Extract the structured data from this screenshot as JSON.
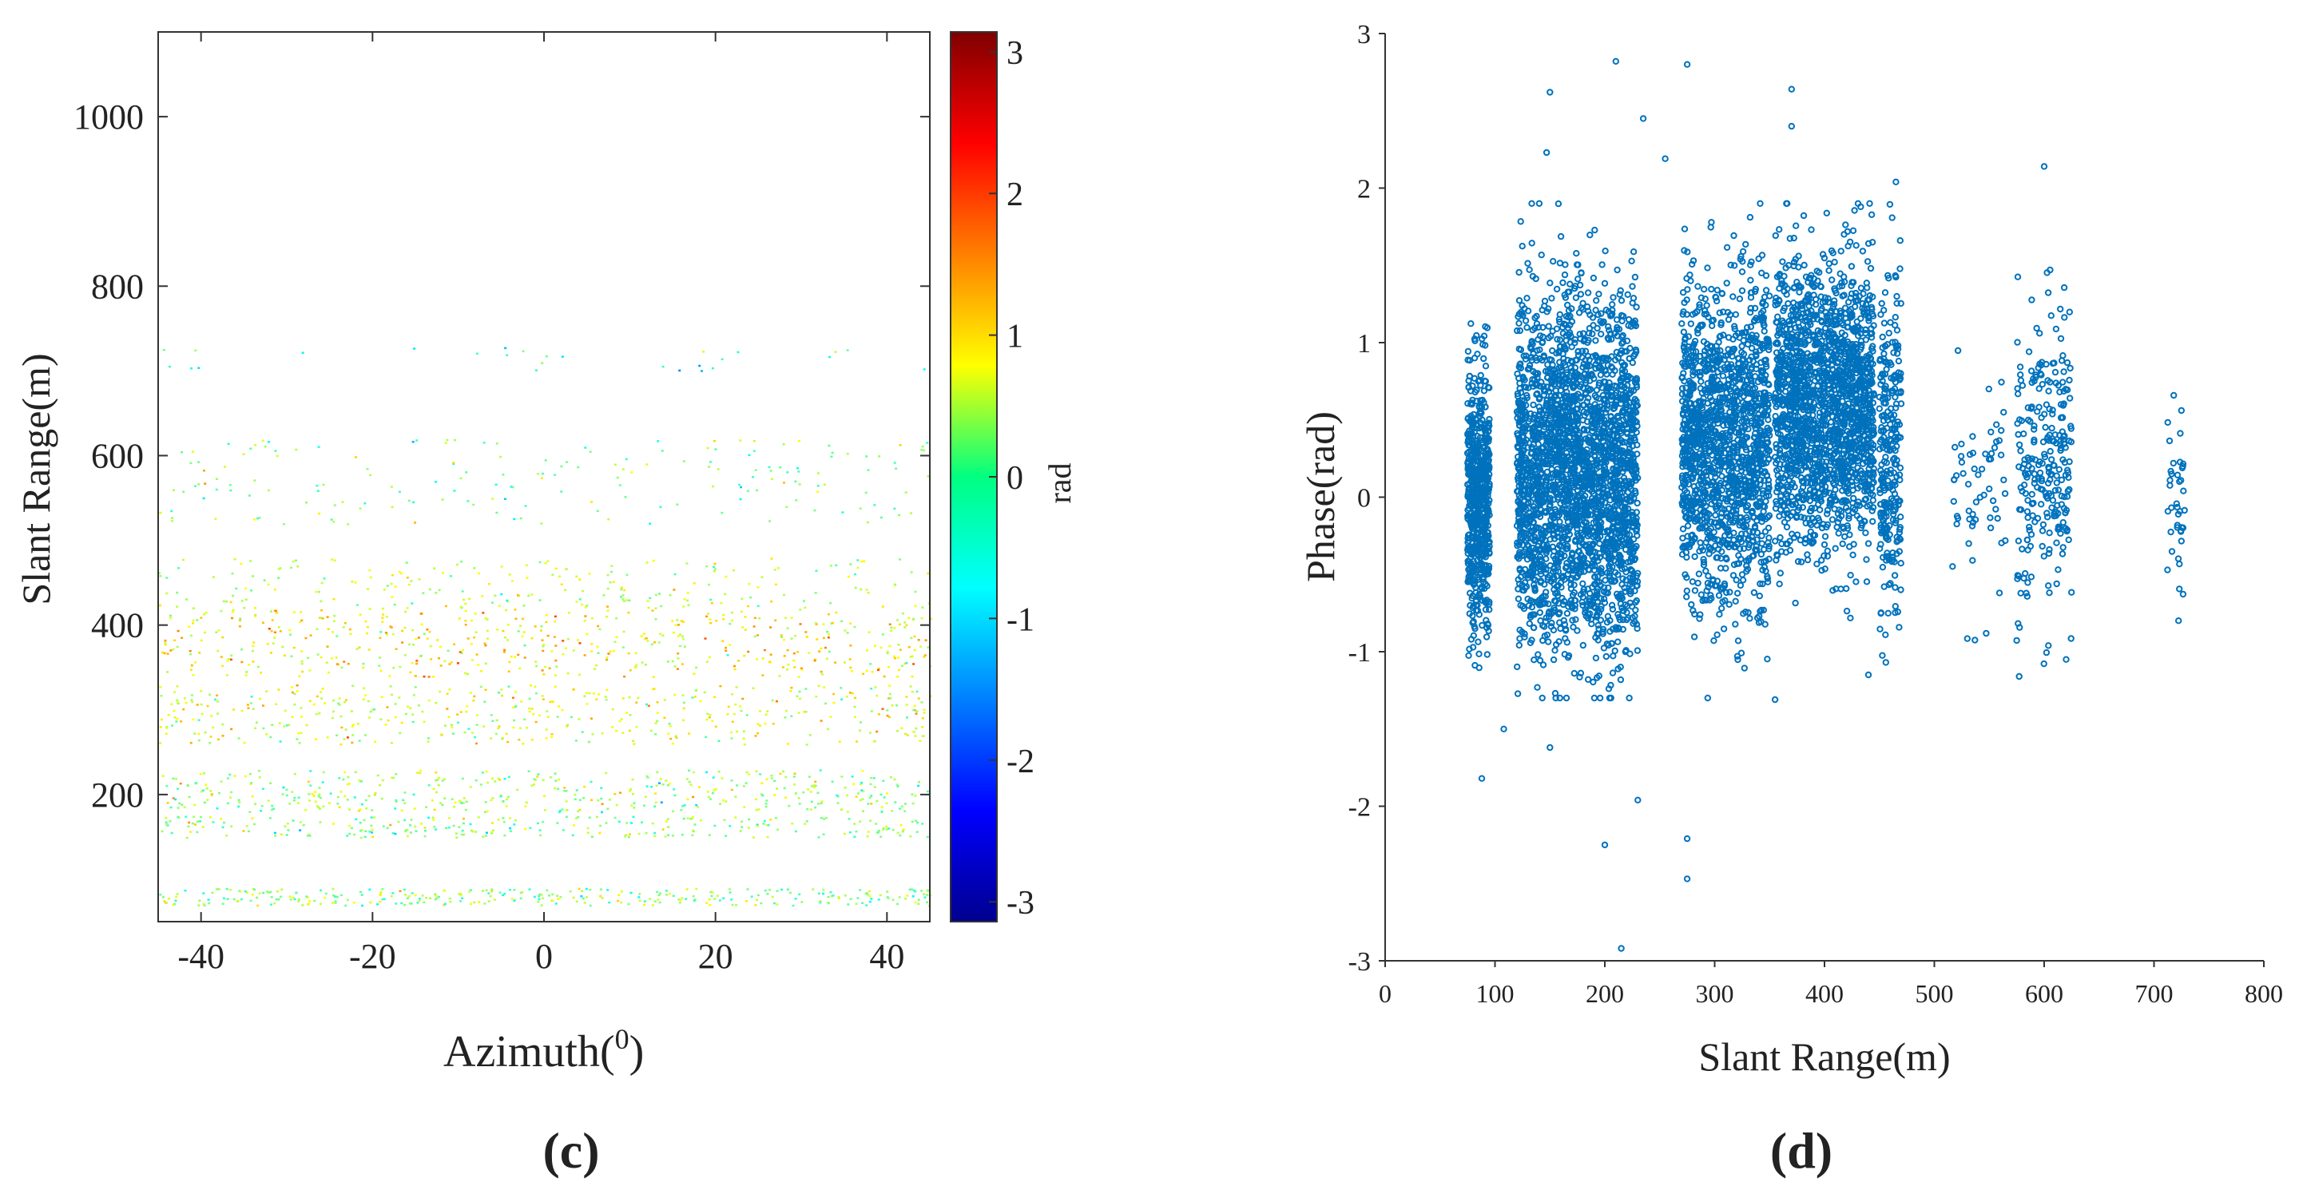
{
  "chart_data": [
    {
      "panel_label": "(c)",
      "type": "heatmap",
      "xlabel": "Azimuth(",
      "xlabel_sup": "0",
      "xlabel_close": ")",
      "ylabel": "Slant Range(m)",
      "xlim": [
        -45,
        45
      ],
      "ylim": [
        50,
        1100
      ],
      "xticks": [
        -40,
        -20,
        0,
        20,
        40
      ],
      "yticks": [
        200,
        400,
        600,
        800,
        1000
      ],
      "colorbar": {
        "label": "rad",
        "range": [
          -3.14,
          3.14
        ],
        "ticks": [
          -3,
          -2,
          -1,
          0,
          1,
          2,
          3
        ],
        "colormap": "jet"
      },
      "grid": false,
      "description_bands": [
        {
          "slant_range": [
            70,
            90
          ],
          "phase_mean": 0.1,
          "density": 0.9
        },
        {
          "slant_range": [
            150,
            175
          ],
          "phase_mean": 0.1,
          "density": 0.55
        },
        {
          "slant_range": [
            180,
            230
          ],
          "phase_mean": 0.2,
          "density": 0.45
        },
        {
          "slant_range": [
            260,
            330
          ],
          "phase_mean": 0.5,
          "density": 0.35
        },
        {
          "slant_range": [
            340,
            420
          ],
          "phase_mean": 0.8,
          "density": 0.35
        },
        {
          "slant_range": [
            420,
            480
          ],
          "phase_mean": 0.4,
          "density": 0.2
        },
        {
          "slant_range": [
            520,
            620
          ],
          "phase_mean": 0.0,
          "density": 0.1
        },
        {
          "slant_range": [
            700,
            730
          ],
          "phase_mean": -0.5,
          "density": 0.05
        }
      ]
    },
    {
      "panel_label": "(d)",
      "type": "scatter",
      "xlabel": "Slant Range(m)",
      "ylabel": "Phase(rad)",
      "xlim": [
        0,
        800
      ],
      "ylim": [
        -3,
        3
      ],
      "xticks": [
        0,
        100,
        200,
        300,
        400,
        500,
        600,
        700,
        800
      ],
      "yticks": [
        -3,
        -2,
        -1,
        0,
        1,
        2,
        3
      ],
      "series_color": "#0072bd",
      "grid": false,
      "clusters": [
        {
          "x_center": 85,
          "x_spread": 10,
          "y_mean": 0.0,
          "y_sd": 0.4,
          "count": 650
        },
        {
          "x_center": 175,
          "x_spread": 55,
          "y_mean": 0.15,
          "y_sd": 0.55,
          "count": 2600
        },
        {
          "x_center": 310,
          "x_spread": 40,
          "y_mean": 0.35,
          "y_sd": 0.5,
          "count": 1500
        },
        {
          "x_center": 400,
          "x_spread": 45,
          "y_mean": 0.6,
          "y_sd": 0.45,
          "count": 1800
        },
        {
          "x_center": 460,
          "x_spread": 10,
          "y_mean": 0.3,
          "y_sd": 0.5,
          "count": 280
        },
        {
          "x_center": 540,
          "x_spread": 25,
          "y_mean": 0.05,
          "y_sd": 0.4,
          "count": 60
        },
        {
          "x_center": 600,
          "x_spread": 25,
          "y_mean": 0.2,
          "y_sd": 0.45,
          "count": 260
        },
        {
          "x_center": 720,
          "x_spread": 8,
          "y_mean": -0.05,
          "y_sd": 0.35,
          "count": 40
        }
      ],
      "outliers": [
        [
          210,
          2.82
        ],
        [
          275,
          2.8
        ],
        [
          150,
          2.62
        ],
        [
          370,
          2.64
        ],
        [
          235,
          2.45
        ],
        [
          147,
          2.23
        ],
        [
          255,
          2.19
        ],
        [
          370,
          2.4
        ],
        [
          600,
          2.14
        ],
        [
          465,
          2.04
        ],
        [
          215,
          -2.92
        ],
        [
          275,
          -2.47
        ],
        [
          275,
          -2.21
        ],
        [
          200,
          -2.25
        ],
        [
          230,
          -1.96
        ],
        [
          88,
          -1.82
        ],
        [
          355,
          -1.31
        ],
        [
          440,
          -1.15
        ],
        [
          620,
          -1.05
        ],
        [
          108,
          -1.5
        ],
        [
          150,
          -1.62
        ]
      ]
    }
  ]
}
